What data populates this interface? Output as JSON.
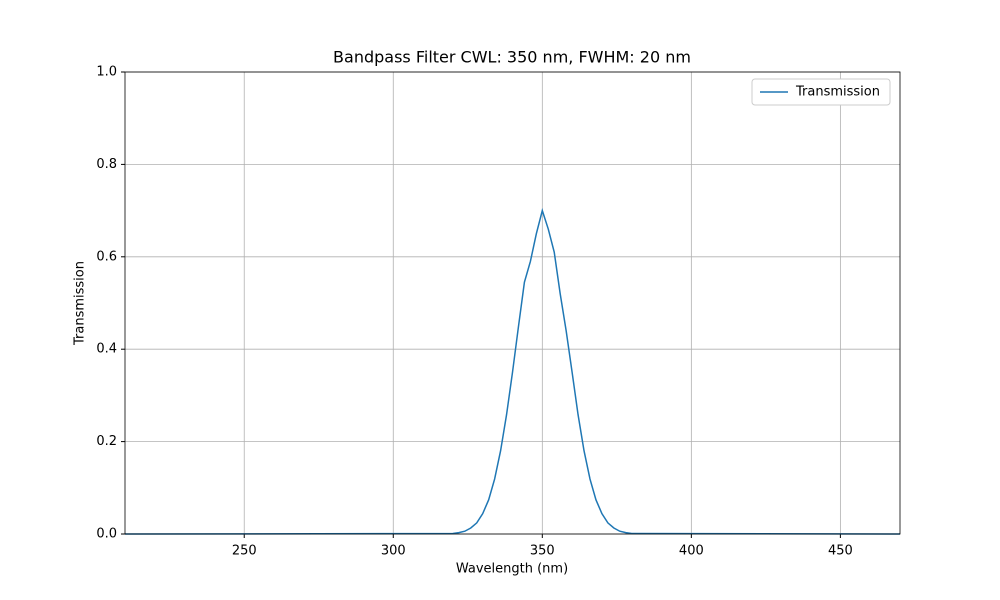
{
  "chart_data": {
    "type": "line",
    "title": "Bandpass Filter CWL: 350 nm, FWHM: 20 nm",
    "x_label": "Wavelength (nm)",
    "y_label": "Transmission",
    "x": [
      210,
      320,
      322,
      324,
      326,
      328,
      330,
      332,
      334,
      336,
      338,
      340,
      342,
      344,
      346,
      348,
      350,
      352,
      354,
      356,
      358,
      360,
      362,
      364,
      366,
      368,
      370,
      372,
      374,
      376,
      378,
      380,
      470
    ],
    "series": [
      {
        "name": "Transmission",
        "color": "#1f77b4",
        "values": [
          0,
          0.001,
          0.003,
          0.006,
          0.013,
          0.024,
          0.044,
          0.074,
          0.119,
          0.18,
          0.258,
          0.35,
          0.449,
          0.545,
          0.59,
          0.65,
          0.7,
          0.66,
          0.61,
          0.52,
          0.44,
          0.35,
          0.258,
          0.18,
          0.119,
          0.074,
          0.044,
          0.024,
          0.013,
          0.006,
          0.003,
          0.001,
          0
        ]
      }
    ],
    "xlim": [
      210,
      470
    ],
    "xticks": [
      250,
      300,
      350,
      400,
      450
    ],
    "ylim": [
      0,
      1
    ],
    "yticks": [
      {
        "value": 0,
        "label": "0.0"
      },
      0.2,
      0.4,
      0.6,
      0.8,
      {
        "value": 1,
        "label": "1.0"
      }
    ],
    "grid": true,
    "legend": "upper right"
  }
}
